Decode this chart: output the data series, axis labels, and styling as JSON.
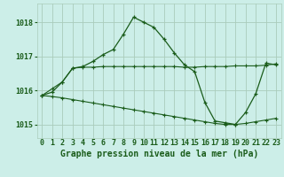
{
  "title": "Graphe pression niveau de la mer (hPa)",
  "background_color": "#cceee8",
  "grid_color": "#aaccbb",
  "line_color": "#1a5c1a",
  "hours": [
    0,
    1,
    2,
    3,
    4,
    5,
    6,
    7,
    8,
    9,
    10,
    11,
    12,
    13,
    14,
    15,
    16,
    17,
    18,
    19,
    20,
    21,
    22,
    23
  ],
  "series1": [
    1015.85,
    1015.95,
    1016.25,
    1016.65,
    1016.7,
    1016.85,
    1017.05,
    1017.2,
    1017.65,
    1018.15,
    1018.0,
    1017.85,
    1017.5,
    1017.1,
    1016.75,
    1016.55,
    1015.65,
    1015.1,
    1015.05,
    1015.0,
    1015.35,
    1015.9,
    1016.8,
    1016.75
  ],
  "series2": [
    1015.85,
    1016.05,
    1016.25,
    1016.65,
    1016.68,
    1016.68,
    1016.7,
    1016.7,
    1016.7,
    1016.7,
    1016.7,
    1016.7,
    1016.7,
    1016.7,
    1016.68,
    1016.68,
    1016.7,
    1016.7,
    1016.7,
    1016.72,
    1016.72,
    1016.72,
    1016.74,
    1016.78
  ],
  "series3": [
    1015.85,
    1015.82,
    1015.78,
    1015.73,
    1015.68,
    1015.63,
    1015.58,
    1015.53,
    1015.48,
    1015.43,
    1015.38,
    1015.33,
    1015.28,
    1015.23,
    1015.18,
    1015.13,
    1015.08,
    1015.03,
    1015.0,
    1015.0,
    1015.03,
    1015.08,
    1015.13,
    1015.18
  ],
  "ylim": [
    1014.6,
    1018.55
  ],
  "yticks": [
    1015,
    1016,
    1017,
    1018
  ],
  "tick_fontsize": 6,
  "title_fontsize": 7
}
